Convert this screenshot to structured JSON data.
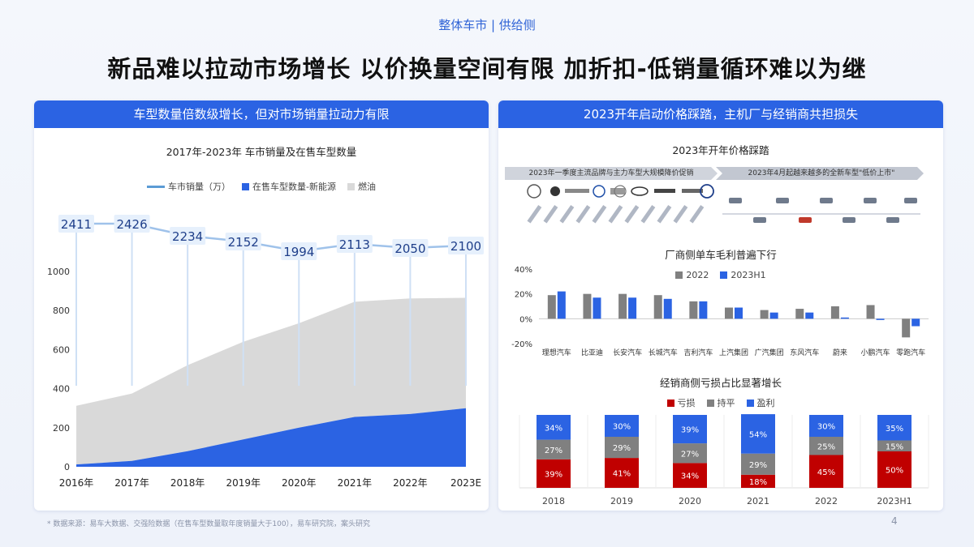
{
  "header": {
    "topic": "整体车市 | 供给侧",
    "headline": "新品难以拉动市场增长  以价换量空间有限  加折扣-低销量循环难以为继"
  },
  "left_panel": {
    "title": "车型数量倍数级增长，但对市场销量拉动力有限",
    "chart_title": "2017年-2023年 车市销量及在售车型数量",
    "legend": {
      "sales": "车市销量（万）",
      "nev": "在售车型数量-新能源",
      "fuel": "燃油"
    }
  },
  "right_panel": {
    "title": "2023开年启动价格踩踏，主机厂与经销商共担损失",
    "timeline_title": "2023年开年价格踩踏",
    "promo_left": "2023年一季度主流品牌与主力车型大规模降价促销",
    "promo_right": "2023年4月起越来越多的全新车型\"低价上市\"",
    "margin_title": "厂商侧单车毛利普遍下行",
    "margin_legend": {
      "y2022": "2022",
      "y2023": "2023H1"
    },
    "dealer_title": "经销商侧亏损占比显著增长",
    "dealer_legend": {
      "loss": "亏损",
      "flat": "持平",
      "profit": "盈利"
    }
  },
  "colors": {
    "blue": "#2b63e3",
    "light_blue": "#5b9bd5",
    "gray": "#d9d9d9",
    "dark_gray": "#808080",
    "red": "#c00000"
  },
  "footer": {
    "source": "* 数据来源：易车大数据、交强险数据（在售车型数量取年度销量大于100），易车研究院，案头研究",
    "page": "4"
  },
  "chart_data": [
    {
      "type": "area",
      "title": "2017年-2023年 车市销量及在售车型数量",
      "categories": [
        "2016年",
        "2017年",
        "2018年",
        "2019年",
        "2020年",
        "2021年",
        "2022年",
        "2023E"
      ],
      "ylim": [
        0,
        1000
      ],
      "yticks": [
        0,
        200,
        400,
        600,
        800,
        1000
      ],
      "series": [
        {
          "name": "在售车型数量-新能源",
          "values": [
            12,
            30,
            80,
            140,
            200,
            255,
            270,
            300
          ]
        },
        {
          "name": "燃油",
          "values": [
            300,
            345,
            440,
            500,
            535,
            590,
            592,
            565
          ]
        }
      ],
      "sales_labels": [
        "2411",
        "2426",
        "2234",
        "2152",
        "1994",
        "2113",
        "2050",
        "2100"
      ]
    },
    {
      "type": "bar",
      "title": "厂商侧单车毛利普遍下行",
      "categories": [
        "理想汽车",
        "比亚迪",
        "长安汽车",
        "长城汽车",
        "吉利汽车",
        "上汽集团",
        "广汽集团",
        "东风汽车",
        "蔚来",
        "小鹏汽车",
        "零跑汽车"
      ],
      "ylim": [
        -20,
        40
      ],
      "yticks": [
        "40%",
        "20%",
        "0%",
        "-20%"
      ],
      "series": [
        {
          "name": "2022",
          "values": [
            19,
            20,
            20,
            19,
            14,
            9,
            7,
            8,
            10,
            11,
            -15
          ]
        },
        {
          "name": "2023H1",
          "values": [
            22,
            17,
            17,
            16,
            14,
            9,
            5,
            5,
            1,
            -1,
            -6
          ]
        }
      ]
    },
    {
      "type": "bar",
      "title": "经销商侧亏损占比显著增长",
      "categories": [
        "2018",
        "2019",
        "2020",
        "2021",
        "2022",
        "2023H1"
      ],
      "series": [
        {
          "name": "亏损",
          "values": [
            39,
            41,
            34,
            18,
            45,
            50
          ],
          "labels": [
            "39%",
            "41%",
            "34%",
            "18%",
            "45%",
            "50%"
          ]
        },
        {
          "name": "持平",
          "values": [
            27,
            29,
            27,
            29,
            25,
            15
          ],
          "labels": [
            "27%",
            "29%",
            "27%",
            "29%",
            "25%",
            "15%"
          ]
        },
        {
          "name": "盈利",
          "values": [
            34,
            30,
            39,
            54,
            30,
            35
          ],
          "labels": [
            "34%",
            "30%",
            "39%",
            "54%",
            "30%",
            "35%"
          ]
        }
      ]
    }
  ]
}
